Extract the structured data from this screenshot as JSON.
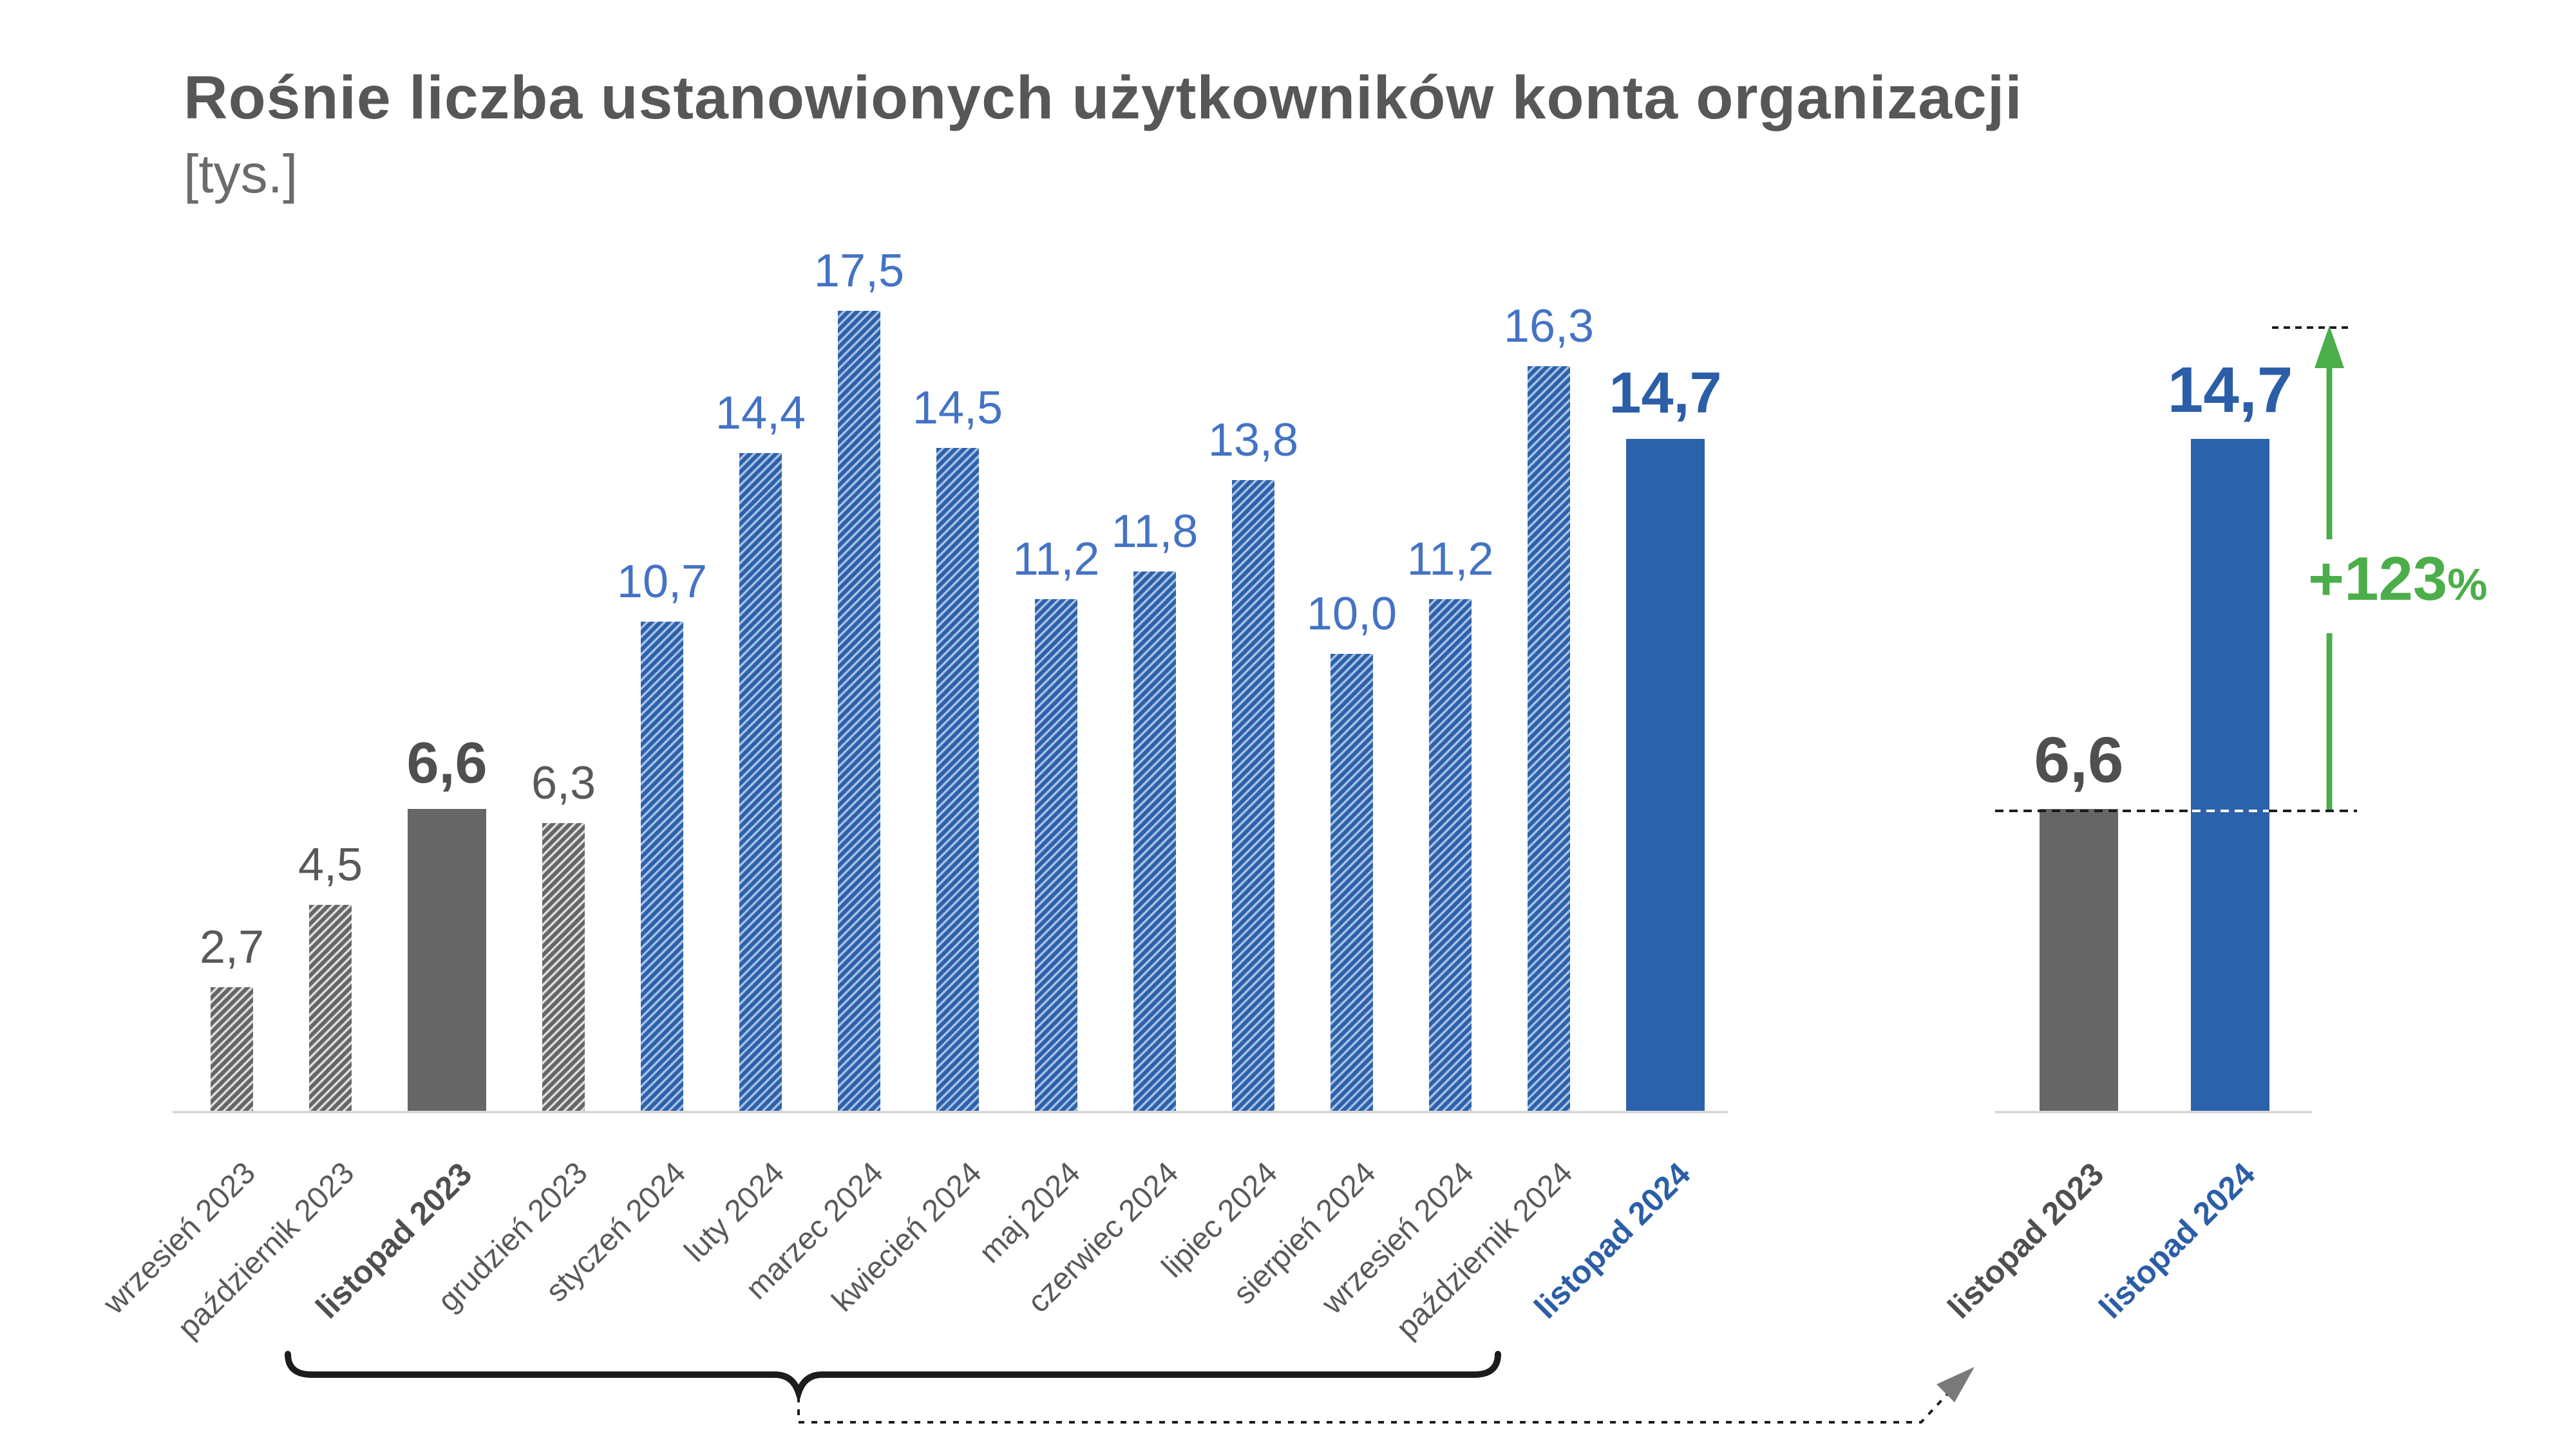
{
  "title": "Rośnie liczba ustanowionych użytkowników konta organizacji",
  "subtitle": "[tys.]",
  "growth": {
    "amount": "+123",
    "percent": "%"
  },
  "colors": {
    "bar-blue": "#2C62AC",
    "bar-blue-hatch-light": "#A9BFE2",
    "bar-gray": "#666666",
    "bar-gray-hatch-light": "#DCDCDC",
    "label-blue": "#4473C5",
    "label-blue-bold": "#2B5EA7",
    "label-gray": "#595959",
    "green": "#4BAE4A",
    "axis-line": "#D9D9D9",
    "annotation-black": "#1C1C1C",
    "arrowhead-gray": "#7A7A7A"
  },
  "chart_data": [
    {
      "type": "bar",
      "title": "Rośnie liczba ustanowionych użytkowników konta organizacji",
      "unit_label": "[tys.]",
      "categories": [
        "wrzesień 2023",
        "październik 2023",
        "listopad 2023",
        "grudzień 2023",
        "styczeń 2024",
        "luty 2024",
        "marzec 2024",
        "kwiecień 2024",
        "maj 2024",
        "czerwiec 2024",
        "lipiec 2024",
        "sierpień 2024",
        "wrzesień 2024",
        "październik 2024",
        "listopad 2024"
      ],
      "values": [
        2.7,
        4.5,
        6.6,
        6.3,
        10.7,
        14.4,
        17.5,
        14.5,
        11.2,
        11.8,
        13.8,
        10.0,
        11.2,
        16.3,
        14.7
      ],
      "value_labels": [
        "2,7",
        "4,5",
        "6,6",
        "6,3",
        "10,7",
        "14,4",
        "17,5",
        "14,5",
        "11,2",
        "11,8",
        "13,8",
        "10,0",
        "11,2",
        "16,3",
        "14,7"
      ],
      "bar_styles": [
        "gray-hatched",
        "gray-hatched",
        "gray-solid",
        "gray-hatched",
        "blue-hatched",
        "blue-hatched",
        "blue-hatched",
        "blue-hatched",
        "blue-hatched",
        "blue-hatched",
        "blue-hatched",
        "blue-hatched",
        "blue-hatched",
        "blue-hatched",
        "blue-solid"
      ],
      "category_styles": [
        "normal",
        "normal",
        "bold-gray",
        "normal",
        "normal",
        "normal",
        "normal",
        "normal",
        "normal",
        "normal",
        "normal",
        "normal",
        "normal",
        "normal",
        "bold-blue"
      ],
      "ylim": [
        0,
        18
      ],
      "grid": false,
      "legend": "none"
    },
    {
      "type": "bar",
      "categories": [
        "listopad 2023",
        "listopad 2024"
      ],
      "values": [
        6.6,
        14.7
      ],
      "value_labels": [
        "6,6",
        "14,7"
      ],
      "bar_styles": [
        "gray-solid",
        "blue-solid"
      ],
      "category_styles": [
        "bold-gray",
        "bold-blue"
      ],
      "growth_annotation": "+123%",
      "ylim": [
        0,
        18
      ],
      "grid": false,
      "legend": "none"
    }
  ]
}
